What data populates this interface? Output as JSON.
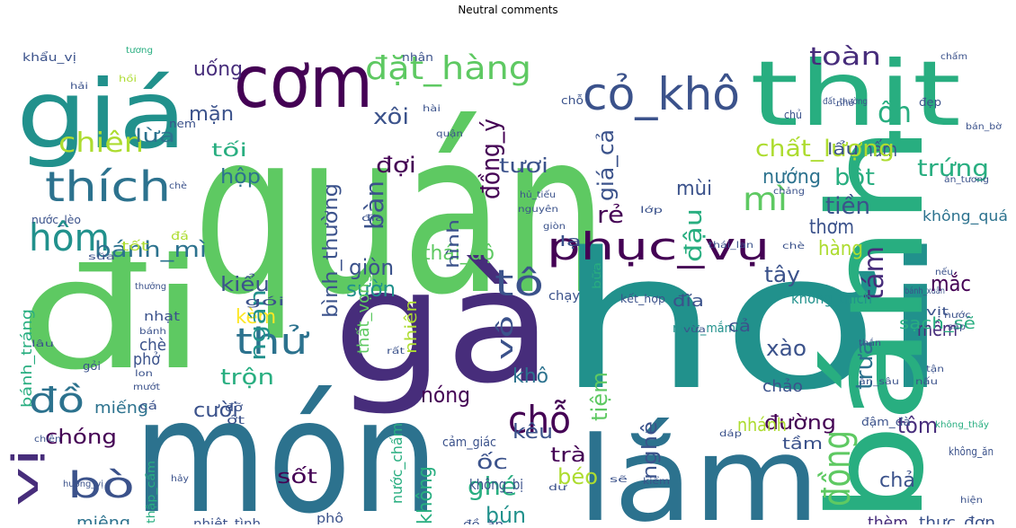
{
  "title": "Neutral comments",
  "palette": [
    "#440154",
    "#472d7b",
    "#3b528b",
    "#2c728e",
    "#21918c",
    "#28ae80",
    "#5ec962",
    "#addc30",
    "#fde725"
  ],
  "words": [
    {
      "text": "quán",
      "color": "#5ec962"
    },
    {
      "text": "hơi",
      "color": "#21918c"
    },
    {
      "text": "món",
      "color": "#2c728e"
    },
    {
      "text": "gà",
      "color": "#472d7b"
    },
    {
      "text": "đi",
      "color": "#5ec962"
    },
    {
      "text": "bánh",
      "color": "#28ae80"
    },
    {
      "text": "lắm",
      "color": "#2c728e"
    },
    {
      "text": "giá",
      "color": "#21918c"
    },
    {
      "text": "thịt",
      "color": "#28ae80"
    },
    {
      "text": "cơm",
      "color": "#440154"
    },
    {
      "text": "cỏ_khô",
      "color": "#3b528b"
    },
    {
      "text": "đặt_hàng",
      "color": "#5ec962"
    },
    {
      "text": "thích",
      "color": "#2c728e"
    },
    {
      "text": "phục_vụ",
      "color": "#440154"
    },
    {
      "text": "hôm",
      "color": "#21918c"
    },
    {
      "text": "chiên",
      "color": "#addc30"
    },
    {
      "text": "mì",
      "color": "#5ec962"
    },
    {
      "text": "tô",
      "color": "#3b528b"
    },
    {
      "text": "thử",
      "color": "#2c728e"
    },
    {
      "text": "chỗ",
      "color": "#440154"
    },
    {
      "text": "đồng",
      "color": "#5ec962"
    },
    {
      "text": "đồ",
      "color": "#2c728e"
    },
    {
      "text": "vị",
      "color": "#472d7b"
    },
    {
      "text": "bò",
      "color": "#3b528b"
    },
    {
      "text": "chóng",
      "color": "#440154"
    },
    {
      "text": "ghé",
      "color": "#28ae80"
    },
    {
      "text": "ốn",
      "color": "#28ae80"
    },
    {
      "text": "nấm",
      "color": "#3b528b"
    },
    {
      "text": "toàn",
      "color": "#472d7b"
    },
    {
      "text": "uống",
      "color": "#472d7b"
    },
    {
      "text": "xôi",
      "color": "#3b528b"
    },
    {
      "text": "mặn",
      "color": "#3b528b"
    },
    {
      "text": "lừa",
      "color": "#2c728e"
    },
    {
      "text": "đợi",
      "color": "#440154"
    },
    {
      "text": "tươi",
      "color": "#3b528b"
    },
    {
      "text": "chất_lượng",
      "color": "#addc30"
    },
    {
      "text": "lẩu",
      "color": "#3b528b"
    },
    {
      "text": "nướng",
      "color": "#2c728e"
    },
    {
      "text": "bột",
      "color": "#28ae80"
    },
    {
      "text": "trứng",
      "color": "#28ae80"
    },
    {
      "text": "tối",
      "color": "#28ae80"
    },
    {
      "text": "hộp",
      "color": "#2c728e"
    },
    {
      "text": "bàn",
      "color": "#3b528b"
    },
    {
      "text": "mùi",
      "color": "#3b528b"
    },
    {
      "text": "tiền",
      "color": "#3b528b"
    },
    {
      "text": "thơm",
      "color": "#3b528b"
    },
    {
      "text": "hàng",
      "color": "#addc30"
    },
    {
      "text": "bánh_mì",
      "color": "#2c728e"
    },
    {
      "text": "rẻ",
      "color": "#440154"
    },
    {
      "text": "thái_độ",
      "color": "#5ec962"
    },
    {
      "text": "tây",
      "color": "#3b528b"
    },
    {
      "text": "tám",
      "color": "#472d7b"
    },
    {
      "text": "giòn",
      "color": "#3b528b"
    },
    {
      "text": "sườn",
      "color": "#21918c"
    },
    {
      "text": "kiểu",
      "color": "#3b528b"
    },
    {
      "text": "mắc",
      "color": "#440154"
    },
    {
      "text": "đĩa",
      "color": "#3b528b"
    },
    {
      "text": "kèm",
      "color": "#fde725"
    },
    {
      "text": "mềm",
      "color": "#472d7b"
    },
    {
      "text": "sạch_sẽ",
      "color": "#28ae80"
    },
    {
      "text": "xào",
      "color": "#3b528b"
    },
    {
      "text": "trưa",
      "color": "#2c728e"
    },
    {
      "text": "chè",
      "color": "#3b528b"
    },
    {
      "text": "phở",
      "color": "#3b528b"
    },
    {
      "text": "trộn",
      "color": "#28ae80"
    },
    {
      "text": "khô",
      "color": "#2c728e"
    },
    {
      "text": "miếng",
      "color": "#2c728e"
    },
    {
      "text": "cười",
      "color": "#3b528b"
    },
    {
      "text": "nóng",
      "color": "#440154"
    },
    {
      "text": "kêu",
      "color": "#3b528b"
    },
    {
      "text": "tôm",
      "color": "#472d7b"
    },
    {
      "text": "đường",
      "color": "#440154"
    },
    {
      "text": "tầm",
      "color": "#3b528b"
    },
    {
      "text": "nhánh",
      "color": "#addc30"
    },
    {
      "text": "chảo",
      "color": "#3b528b"
    },
    {
      "text": "ốc",
      "color": "#3b528b"
    },
    {
      "text": "trà",
      "color": "#440154"
    },
    {
      "text": "sốt",
      "color": "#440154"
    },
    {
      "text": "béo",
      "color": "#addc30"
    },
    {
      "text": "bún",
      "color": "#21918c"
    },
    {
      "text": "chả",
      "color": "#3b528b"
    },
    {
      "text": "miệng",
      "color": "#2c728e"
    },
    {
      "text": "thực_đơn",
      "color": "#3b528b"
    },
    {
      "text": "thèm",
      "color": "#472d7b"
    },
    {
      "text": "nghê",
      "color": "#3b528b"
    },
    {
      "text": "không",
      "color": "#28ae80"
    },
    {
      "text": "tiệm",
      "color": "#5ec962"
    },
    {
      "text": "ngán",
      "color": "#21918c"
    },
    {
      "text": "vô",
      "color": "#3b528b"
    },
    {
      "text": "đồng_ý",
      "color": "#440154"
    },
    {
      "text": "giá_cả",
      "color": "#3b528b"
    },
    {
      "text": "bình_thường",
      "color": "#3b528b"
    },
    {
      "text": "đậu",
      "color": "#28ae80"
    },
    {
      "text": "thất_vọng",
      "color": "#5ec962"
    },
    {
      "text": "hình",
      "color": "#3b528b"
    },
    {
      "text": "bánh_tráng",
      "color": "#28ae80"
    },
    {
      "text": "nhiên",
      "color": "#addc30"
    },
    {
      "text": "không_quá",
      "color": "#2c728e"
    },
    {
      "text": "không_thích",
      "color": "#21918c"
    },
    {
      "text": "nước_mắm",
      "color": "#21918c"
    },
    {
      "text": "nước_chấm",
      "color": "#28ae80"
    },
    {
      "text": "không_bị",
      "color": "#3b528b"
    },
    {
      "text": "cảm_giác",
      "color": "#3b528b"
    },
    {
      "text": "nhiệt_tình",
      "color": "#3b528b"
    },
    {
      "text": "đồ_ăn",
      "color": "#3b528b"
    },
    {
      "text": "không_ăn",
      "color": "#3b528b"
    },
    {
      "text": "nước_lèo",
      "color": "#3b528b"
    },
    {
      "text": "khẩu_vị",
      "color": "#3b528b"
    },
    {
      "text": "nhân",
      "color": "#3b528b"
    },
    {
      "text": "chấm",
      "color": "#3b528b"
    },
    {
      "text": "đẹp",
      "color": "#3b528b"
    },
    {
      "text": "chủ",
      "color": "#3b528b"
    },
    {
      "text": "tốt",
      "color": "#addc30"
    },
    {
      "text": "đá",
      "color": "#addc30"
    },
    {
      "text": "nem",
      "color": "#3b528b"
    },
    {
      "text": "hải",
      "color": "#3b528b"
    },
    {
      "text": "hồi",
      "color": "#addc30"
    },
    {
      "text": "nhạt",
      "color": "#3b528b"
    },
    {
      "text": "cả",
      "color": "#3b528b"
    },
    {
      "text": "chạy",
      "color": "#3b528b"
    },
    {
      "text": "lạ",
      "color": "#3b528b"
    },
    {
      "text": "bữa",
      "color": "#28ae80"
    },
    {
      "text": "vịt",
      "color": "#3b528b"
    },
    {
      "text": "lâu",
      "color": "#3b528b"
    },
    {
      "text": "chiên",
      "color": "#3b528b"
    },
    {
      "text": "mỡ",
      "color": "#3b528b"
    },
    {
      "text": "phô",
      "color": "#3b528b"
    },
    {
      "text": "đậm_đà",
      "color": "#3b528b"
    },
    {
      "text": "kết_hợp",
      "color": "#3b528b"
    },
    {
      "text": "gói",
      "color": "#3b528b"
    },
    {
      "text": "thập_cẩm",
      "color": "#28ae80"
    },
    {
      "text": "chỗ",
      "color": "#3b528b"
    },
    {
      "text": "gỏi",
      "color": "#3b528b"
    },
    {
      "text": "cá",
      "color": "#3b528b"
    },
    {
      "text": "sữa",
      "color": "#3b528b"
    },
    {
      "text": "đỡ",
      "color": "#3b528b"
    },
    {
      "text": "ớt",
      "color": "#3b528b"
    },
    {
      "text": "chè",
      "color": "#3b528b"
    },
    {
      "text": "nguyên",
      "color": "#3b528b"
    },
    {
      "text": "lớp",
      "color": "#3b528b"
    },
    {
      "text": "đĩa",
      "color": "#3b528b"
    },
    {
      "text": "giòn",
      "color": "#3b528b"
    },
    {
      "text": "hủ_tiếu",
      "color": "#3b528b"
    },
    {
      "text": "thái_lan",
      "color": "#3b528b"
    },
    {
      "text": "chè",
      "color": "#3b528b"
    },
    {
      "text": "hài",
      "color": "#3b528b"
    },
    {
      "text": "đất_thường",
      "color": "#3b528b"
    },
    {
      "text": "nhỏ",
      "color": "#3b528b"
    },
    {
      "text": "quận",
      "color": "#3b528b"
    },
    {
      "text": "không_thấy",
      "color": "#28ae80"
    },
    {
      "text": "bán_bờ",
      "color": "#3b528b"
    },
    {
      "text": "ăn_tương",
      "color": "#3b528b"
    },
    {
      "text": "chảng",
      "color": "#3b528b"
    },
    {
      "text": "bánh_xuân",
      "color": "#3b528b"
    },
    {
      "text": "dáp",
      "color": "#3b528b"
    },
    {
      "text": "thưởng",
      "color": "#3b528b"
    },
    {
      "text": "hảy",
      "color": "#3b528b"
    },
    {
      "text": "vừa",
      "color": "#3b528b"
    },
    {
      "text": "nếu",
      "color": "#3b528b"
    },
    {
      "text": "nước",
      "color": "#3b528b"
    },
    {
      "text": "nấu",
      "color": "#3b528b"
    },
    {
      "text": "hương_vị",
      "color": "#3b528b"
    },
    {
      "text": "sắp",
      "color": "#3b528b"
    },
    {
      "text": "tận",
      "color": "#3b528b"
    },
    {
      "text": "ăn_sâu",
      "color": "#3b528b"
    },
    {
      "text": "hiện",
      "color": "#3b528b"
    },
    {
      "text": "thắn",
      "color": "#3b528b"
    },
    {
      "text": "tương",
      "color": "#28ae80"
    },
    {
      "text": "mướt",
      "color": "#3b528b"
    },
    {
      "text": "rất",
      "color": "#3b528b"
    },
    {
      "text": "lon",
      "color": "#3b528b"
    },
    {
      "text": "bánh",
      "color": "#3b528b"
    },
    {
      "text": "kiểm",
      "color": "#3b528b"
    },
    {
      "text": "sẽ",
      "color": "#3b528b"
    },
    {
      "text": "dư",
      "color": "#3b528b"
    }
  ]
}
